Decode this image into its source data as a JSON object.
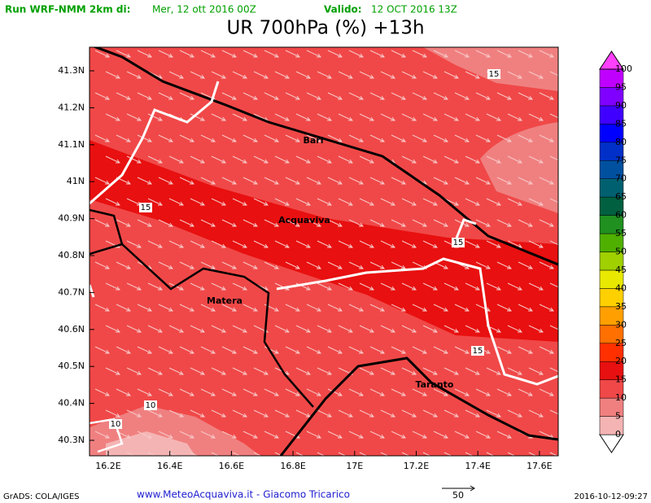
{
  "header": {
    "run_label": "Run WRF-NMM 2km di:",
    "run_date": "Mer, 12 ott 2016 00Z",
    "valid_label": "Valido:",
    "valid_date": "12 OCT 2016 13Z"
  },
  "title": "UR 700hPa (%) +13h",
  "map": {
    "lat_labels": [
      "41.3N",
      "41.2N",
      "41.1N",
      "41N",
      "40.9N",
      "40.8N",
      "40.7N",
      "40.6N",
      "40.5N",
      "40.4N",
      "40.3N"
    ],
    "lon_labels": [
      "16.2E",
      "16.4E",
      "16.6E",
      "16.8E",
      "17E",
      "17.2E",
      "17.4E",
      "17.6E"
    ],
    "places": [
      "Bari",
      "Acquaviva",
      "Matera",
      "Taranto"
    ],
    "contour_labels": [
      "15",
      "15",
      "15",
      "15",
      "10",
      "10"
    ]
  },
  "colorbar": {
    "labels": [
      0,
      5,
      10,
      15,
      20,
      25,
      30,
      35,
      40,
      45,
      50,
      55,
      60,
      65,
      70,
      75,
      80,
      85,
      90,
      95,
      100
    ],
    "colors": [
      "#ffffff",
      "#f5b4b4",
      "#f08080",
      "#f04848",
      "#e81010",
      "#ff3000",
      "#ff7000",
      "#ffa000",
      "#ffd000",
      "#e8e800",
      "#a0d000",
      "#50b000",
      "#209020",
      "#006040",
      "#006070",
      "#0050a0",
      "#0030c8",
      "#0000ff",
      "#4000ff",
      "#8000ff",
      "#c000ff",
      "#ff40ff"
    ]
  },
  "footer": {
    "software": "GrADS: COLA/IGES",
    "credit": "www.MeteoAcquaviva.it - Giacomo Tricarico",
    "vector_scale": "50",
    "timestamp": "2016-10-12-09:27"
  }
}
